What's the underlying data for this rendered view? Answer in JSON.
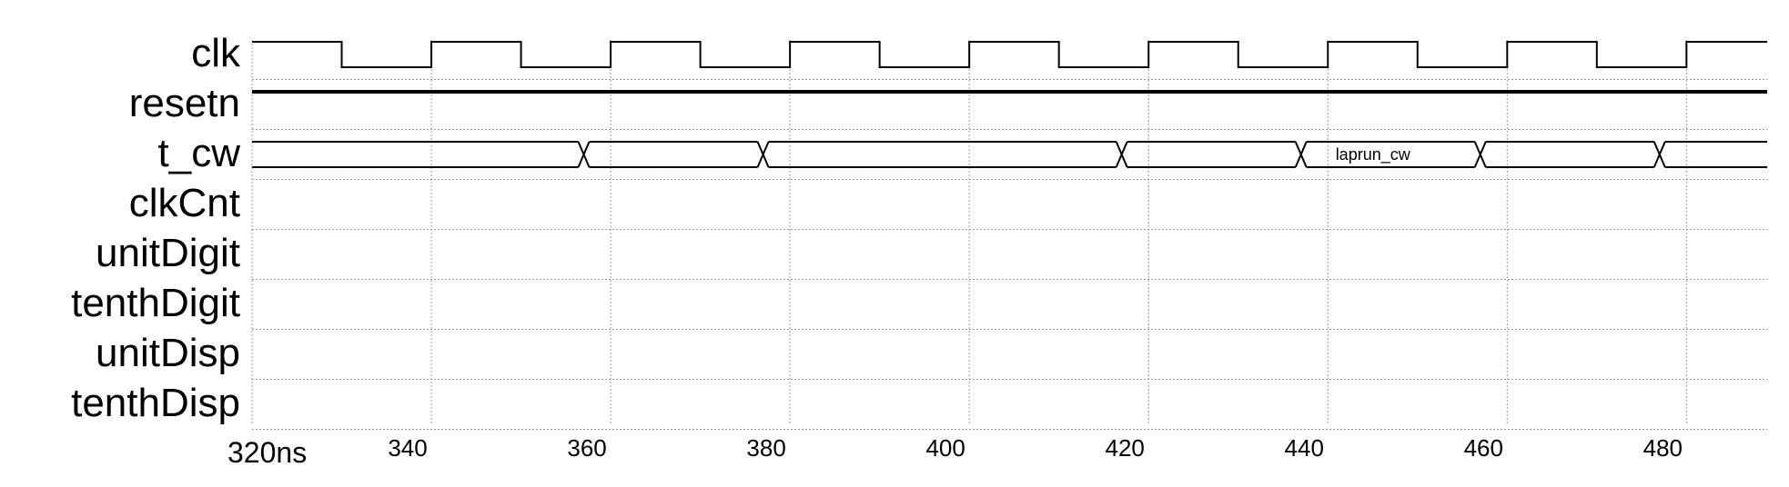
{
  "time_axis": {
    "unit": "ns",
    "range": [
      320,
      489
    ],
    "start_label": "320ns",
    "ticks": [
      {
        "t": 340,
        "label": "340"
      },
      {
        "t": 360,
        "label": "360"
      },
      {
        "t": 380,
        "label": "380"
      },
      {
        "t": 400,
        "label": "400"
      },
      {
        "t": 420,
        "label": "420"
      },
      {
        "t": 440,
        "label": "440"
      },
      {
        "t": 460,
        "label": "460"
      },
      {
        "t": 480,
        "label": "480"
      }
    ]
  },
  "signals": [
    {
      "name": "clk",
      "kind": "clock",
      "rises": [
        320,
        340,
        360,
        380,
        400,
        420,
        440,
        460,
        480
      ],
      "falls": [
        330,
        350,
        370,
        390,
        410,
        430,
        450,
        470
      ]
    },
    {
      "name": "resetn",
      "kind": "level",
      "value": 1
    },
    {
      "name": "t_cw",
      "kind": "bus",
      "transitions": [
        357,
        377,
        417,
        437,
        457,
        477
      ],
      "segments": [
        {
          "from": 320,
          "to": 357,
          "label": ""
        },
        {
          "from": 357,
          "to": 377,
          "label": ""
        },
        {
          "from": 377,
          "to": 417,
          "label": ""
        },
        {
          "from": 417,
          "to": 437,
          "label": ""
        },
        {
          "from": 437,
          "to": 457,
          "label": "laprun_cw"
        },
        {
          "from": 457,
          "to": 477,
          "label": ""
        },
        {
          "from": 477,
          "to": 489,
          "label": ""
        }
      ]
    },
    {
      "name": "clkCnt",
      "kind": "empty"
    },
    {
      "name": "unitDigit",
      "kind": "empty"
    },
    {
      "name": "tenthDigit",
      "kind": "empty"
    },
    {
      "name": "unitDisp",
      "kind": "empty"
    },
    {
      "name": "tenthDisp",
      "kind": "empty"
    }
  ],
  "colors": {
    "wave": "#000000",
    "grid": "#9a9a9a",
    "row_divider": "#9a9a9a",
    "background": "#ffffff"
  }
}
